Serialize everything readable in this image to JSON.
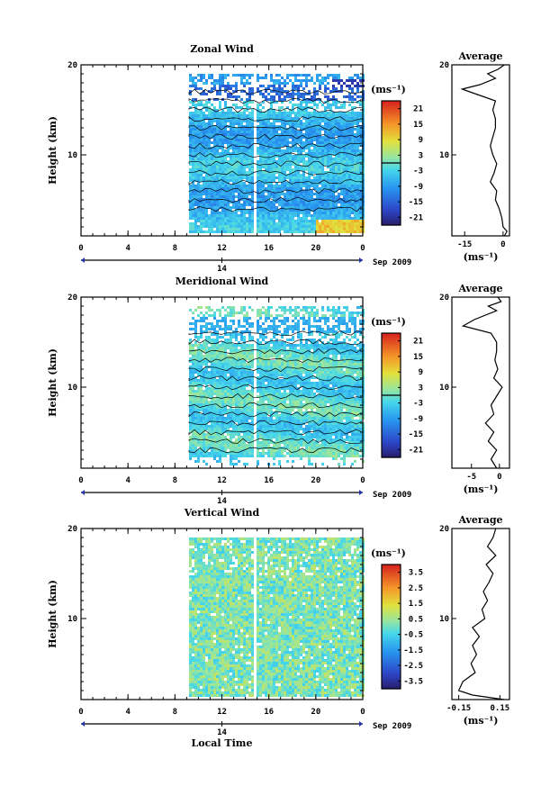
{
  "chart_data": [
    {
      "type": "heatmap",
      "title": "Zonal Wind",
      "ylabel": "Height (km)",
      "xlabel": "",
      "x_ticks": [
        "0",
        "4",
        "8",
        "12",
        "16",
        "20",
        "0"
      ],
      "xlim": [
        0,
        24
      ],
      "y_ticks": [
        "20",
        "10"
      ],
      "ylim": [
        1,
        20
      ],
      "date_axis": {
        "day": "14",
        "suffix": "Sep 2009"
      },
      "colorbar": {
        "unit": "(ms⁻¹)",
        "ticks": [
          "21",
          "15",
          "9",
          "3",
          "-3",
          "-9",
          "-15",
          "-21"
        ],
        "range": [
          -24,
          24
        ],
        "contour": 0
      },
      "data_start_hour": 9.2,
      "profile": {
        "title": "Average",
        "x_ticks": [
          "-15",
          "0"
        ],
        "xlim": [
          -20,
          2.5
        ],
        "unit": "(ms⁻¹)",
        "points": [
          [
            0.5,
            1
          ],
          [
            1.5,
            1.5
          ],
          [
            0,
            2
          ],
          [
            -0.5,
            3
          ],
          [
            -1.5,
            4
          ],
          [
            -3,
            5
          ],
          [
            -2.5,
            6
          ],
          [
            -5,
            7
          ],
          [
            -3.5,
            8
          ],
          [
            -2.5,
            9
          ],
          [
            -4,
            10
          ],
          [
            -5,
            11
          ],
          [
            -4,
            12
          ],
          [
            -3,
            13
          ],
          [
            -3,
            14
          ],
          [
            -4,
            15
          ],
          [
            -3,
            16
          ],
          [
            -13,
            17
          ],
          [
            -16,
            17.3
          ],
          [
            -9,
            17.8
          ],
          [
            -3,
            18.5
          ],
          [
            -6,
            19
          ],
          [
            -2,
            19.5
          ],
          [
            0.5,
            20
          ]
        ]
      },
      "pattern": "zonal"
    },
    {
      "type": "heatmap",
      "title": "Meridional Wind",
      "ylabel": "Height (km)",
      "xlabel": "",
      "x_ticks": [
        "0",
        "4",
        "8",
        "12",
        "16",
        "20",
        "0"
      ],
      "xlim": [
        0,
        24
      ],
      "y_ticks": [
        "20",
        "10"
      ],
      "ylim": [
        1,
        20
      ],
      "date_axis": {
        "day": "14",
        "suffix": "Sep 2009"
      },
      "colorbar": {
        "unit": "(ms⁻¹)",
        "ticks": [
          "21",
          "15",
          "9",
          "3",
          "-3",
          "-9",
          "-15",
          "-21"
        ],
        "range": [
          -24,
          24
        ],
        "contour": 0
      },
      "data_start_hour": 9.2,
      "profile": {
        "title": "Average",
        "x_ticks": [
          "-5",
          "0"
        ],
        "xlim": [
          -8.5,
          1.8
        ],
        "unit": "(ms⁻¹)",
        "points": [
          [
            -0.5,
            1
          ],
          [
            -1.5,
            2
          ],
          [
            -0.5,
            3
          ],
          [
            -2,
            4
          ],
          [
            -1,
            5
          ],
          [
            -2.5,
            6
          ],
          [
            -1,
            7
          ],
          [
            -1.5,
            8
          ],
          [
            -0.5,
            9
          ],
          [
            0.5,
            10
          ],
          [
            -1,
            11
          ],
          [
            -0.3,
            12
          ],
          [
            -0.8,
            13
          ],
          [
            -0.5,
            14
          ],
          [
            -0.5,
            15
          ],
          [
            -1.5,
            16
          ],
          [
            -6.5,
            16.8
          ],
          [
            -4.5,
            17.5
          ],
          [
            -0.5,
            18.5
          ],
          [
            -2,
            19
          ],
          [
            0.3,
            19.5
          ],
          [
            -0.3,
            20
          ]
        ]
      },
      "pattern": "meridional"
    },
    {
      "type": "heatmap",
      "title": "Vertical Wind",
      "ylabel": "Height (km)",
      "xlabel": "Local Time",
      "x_ticks": [
        "0",
        "4",
        "8",
        "12",
        "16",
        "20",
        "0"
      ],
      "xlim": [
        0,
        24
      ],
      "y_ticks": [
        "20",
        "10"
      ],
      "ylim": [
        1,
        20
      ],
      "date_axis": {
        "day": "14",
        "suffix": "Sep 2009"
      },
      "colorbar": {
        "unit": "(ms⁻¹)",
        "ticks": [
          "3.5",
          "2.5",
          "1.5",
          "0.5",
          "-0.5",
          "-1.5",
          "-2.5",
          "-3.5"
        ],
        "range": [
          -4,
          4
        ],
        "contour": null
      },
      "data_start_hour": 9.2,
      "profile": {
        "title": "Average",
        "x_ticks": [
          "-0.15",
          "0.15"
        ],
        "xlim": [
          -0.2,
          0.22
        ],
        "unit": "(ms⁻¹)",
        "points": [
          [
            0.18,
            1
          ],
          [
            -0.05,
            1.5
          ],
          [
            -0.15,
            2
          ],
          [
            -0.12,
            3
          ],
          [
            -0.03,
            4
          ],
          [
            -0.06,
            5
          ],
          [
            -0.02,
            6
          ],
          [
            -0.05,
            7
          ],
          [
            0.0,
            8
          ],
          [
            -0.05,
            9
          ],
          [
            0.04,
            10
          ],
          [
            0.02,
            11
          ],
          [
            0.06,
            12
          ],
          [
            0.03,
            13
          ],
          [
            0.07,
            14
          ],
          [
            0.1,
            15
          ],
          [
            0.05,
            16
          ],
          [
            0.12,
            17
          ],
          [
            0.06,
            18
          ],
          [
            0.1,
            19
          ],
          [
            0.12,
            20
          ]
        ]
      },
      "pattern": "vertical"
    }
  ]
}
